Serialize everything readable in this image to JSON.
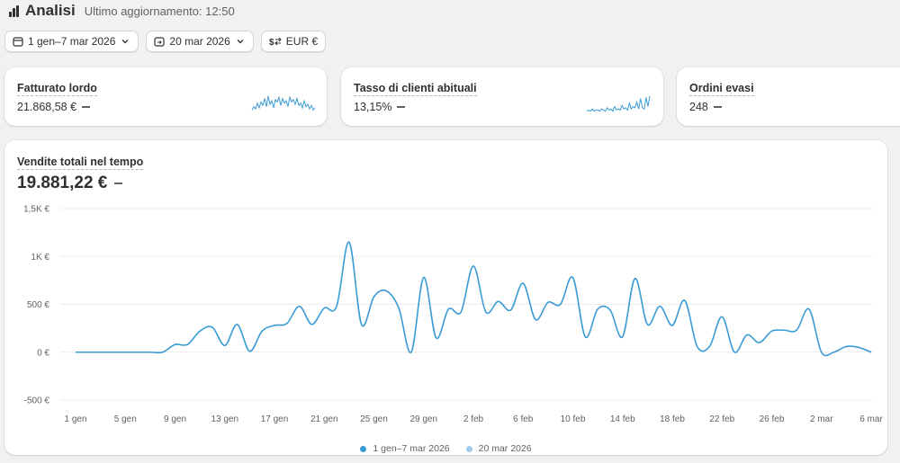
{
  "header": {
    "title": "Analisi",
    "icon": "bar-chart-icon",
    "updated": "Ultimo aggiornamento: 12:50"
  },
  "filters": {
    "date_range": "1 gen–7 mar 2026",
    "compare_date": "20 mar 2026",
    "currency": "EUR €"
  },
  "metrics": [
    {
      "title": "Fatturato lordo",
      "value": "21.868,58 €"
    },
    {
      "title": "Tasso di clienti abituali",
      "value": "13,15%"
    },
    {
      "title": "Ordini evasi",
      "value": "248"
    }
  ],
  "sales": {
    "title": "Vendite totali nel tempo",
    "value": "19.881,22 €"
  },
  "colors": {
    "primary_series": "#3a9bd5",
    "comparison_series": "#9fcaea",
    "gridline": "#ececec",
    "axis_text": "#616161"
  },
  "chart_data": {
    "type": "line",
    "title": "Vendite totali nel tempo",
    "xlabel": "",
    "ylabel": "",
    "ylim": [
      -500,
      1500
    ],
    "y_ticks": [
      {
        "value": 1500,
        "label": "1,5K €"
      },
      {
        "value": 1000,
        "label": "1K €"
      },
      {
        "value": 500,
        "label": "500 €"
      },
      {
        "value": 0,
        "label": "0 €"
      },
      {
        "value": -500,
        "label": "-500 €"
      }
    ],
    "x_ticks": [
      {
        "index": 0,
        "label": "1 gen"
      },
      {
        "index": 4,
        "label": "5 gen"
      },
      {
        "index": 8,
        "label": "9 gen"
      },
      {
        "index": 12,
        "label": "13 gen"
      },
      {
        "index": 16,
        "label": "17 gen"
      },
      {
        "index": 20,
        "label": "21 gen"
      },
      {
        "index": 24,
        "label": "25 gen"
      },
      {
        "index": 28,
        "label": "29 gen"
      },
      {
        "index": 32,
        "label": "2 feb"
      },
      {
        "index": 36,
        "label": "6 feb"
      },
      {
        "index": 40,
        "label": "10 feb"
      },
      {
        "index": 44,
        "label": "14 feb"
      },
      {
        "index": 48,
        "label": "18 feb"
      },
      {
        "index": 52,
        "label": "22 feb"
      },
      {
        "index": 56,
        "label": "26 feb"
      },
      {
        "index": 60,
        "label": "2 mar"
      },
      {
        "index": 64,
        "label": "6 mar"
      }
    ],
    "grid": true,
    "legend": "bottom-center",
    "series": [
      {
        "name": "1 gen–7 mar 2026",
        "values": [
          0,
          0,
          0,
          0,
          0,
          0,
          0,
          0,
          80,
          80,
          220,
          260,
          70,
          290,
          10,
          220,
          280,
          300,
          480,
          290,
          460,
          480,
          1150,
          290,
          580,
          640,
          460,
          0,
          780,
          150,
          450,
          420,
          900,
          420,
          530,
          440,
          720,
          340,
          520,
          500,
          780,
          160,
          450,
          440,
          160,
          770,
          290,
          480,
          280,
          540,
          60,
          60,
          370,
          0,
          180,
          100,
          220,
          230,
          230,
          450,
          0,
          0,
          60,
          50,
          0
        ],
        "color": "#3a9bd5"
      },
      {
        "name": "20 mar 2026",
        "values": [],
        "color": "#9fcaea"
      }
    ]
  },
  "sparklines": {
    "gross_sales": [
      2,
      5,
      3,
      8,
      4,
      9,
      6,
      12,
      5,
      14,
      7,
      10,
      4,
      11,
      9,
      13,
      6,
      12,
      8,
      10,
      5,
      13,
      9,
      11,
      7,
      12,
      6,
      8,
      4,
      10,
      5,
      7,
      3,
      6,
      2,
      4
    ],
    "returning_rate": [
      1,
      2,
      1,
      3,
      1,
      2,
      2,
      1,
      3,
      2,
      1,
      4,
      2,
      3,
      1,
      5,
      2,
      3,
      2,
      6,
      3,
      4,
      2,
      8,
      3,
      5,
      4,
      9,
      3,
      12,
      4,
      3,
      13,
      5,
      14
    ]
  }
}
